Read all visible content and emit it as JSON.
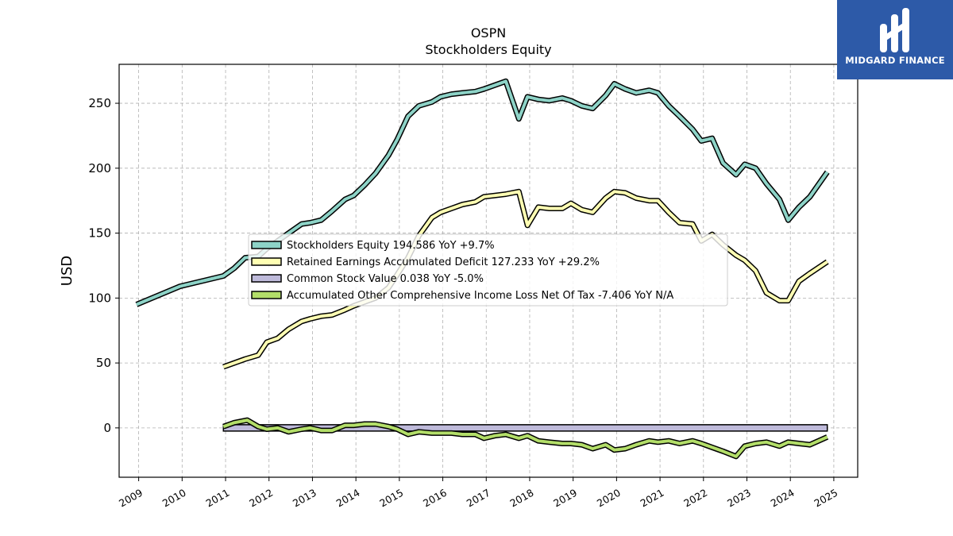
{
  "brand": {
    "name": "MIDGARD FINANCE",
    "bg_color": "#2d5aa8"
  },
  "chart_data": {
    "type": "line",
    "title": "OSPN",
    "subtitle": "Stockholders  Equity",
    "ylabel": "USD",
    "xlabel": "",
    "xlim": [
      2008.55,
      2025.55
    ],
    "ylim": [
      -38,
      280
    ],
    "yticks": [
      0,
      50,
      100,
      150,
      200,
      250
    ],
    "xticks": [
      "2009",
      "2010",
      "2011",
      "2012",
      "2013",
      "2014",
      "2015",
      "2016",
      "2017",
      "2018",
      "2019",
      "2020",
      "2021",
      "2022",
      "2023",
      "2024",
      "2025"
    ],
    "grid": true,
    "legend_position": "center",
    "series": [
      {
        "name": "Stockholders Equity  194.586 YoY +9.7%",
        "color": "#8dd3c7",
        "type": "line",
        "x": [
          2008.95,
          2009.95,
          2010.95,
          2011.2,
          2011.45,
          2011.75,
          2011.95,
          2012.2,
          2012.45,
          2012.75,
          2012.95,
          2013.2,
          2013.45,
          2013.75,
          2013.95,
          2014.2,
          2014.45,
          2014.75,
          2014.95,
          2015.2,
          2015.45,
          2015.75,
          2015.95,
          2016.2,
          2016.45,
          2016.75,
          2016.95,
          2017.2,
          2017.45,
          2017.75,
          2017.95,
          2018.2,
          2018.45,
          2018.75,
          2018.95,
          2019.2,
          2019.45,
          2019.75,
          2019.95,
          2020.2,
          2020.45,
          2020.75,
          2020.95,
          2021.2,
          2021.45,
          2021.75,
          2021.95,
          2022.2,
          2022.45,
          2022.75,
          2022.95,
          2023.2,
          2023.45,
          2023.75,
          2023.95,
          2024.2,
          2024.45,
          2024.85
        ],
        "y": [
          95,
          109,
          117,
          123,
          131,
          132,
          138,
          144,
          150,
          157,
          158,
          160,
          167,
          176,
          179,
          187,
          196,
          210,
          222,
          240,
          248,
          251,
          255,
          257,
          258,
          259,
          261,
          264,
          267,
          238,
          255,
          253,
          252,
          254,
          252,
          248,
          246,
          256,
          265,
          261,
          258,
          260,
          258,
          248,
          240,
          230,
          221,
          223,
          204,
          195,
          203,
          200,
          188,
          176,
          160,
          170,
          178,
          197
        ],
        "y_note": "approximate, read from gridlines"
      },
      {
        "name": "Retained Earnings Accumulated Deficit  127.233 YoY +29.2%",
        "color": "#ffffb3",
        "type": "line",
        "x": [
          2010.95,
          2011.2,
          2011.45,
          2011.75,
          2011.95,
          2012.2,
          2012.45,
          2012.75,
          2012.95,
          2013.2,
          2013.45,
          2013.75,
          2013.95,
          2014.2,
          2014.45,
          2014.75,
          2014.95,
          2015.2,
          2015.45,
          2015.75,
          2015.95,
          2016.2,
          2016.45,
          2016.75,
          2016.95,
          2017.2,
          2017.45,
          2017.75,
          2017.95,
          2018.2,
          2018.45,
          2018.75,
          2018.95,
          2019.2,
          2019.45,
          2019.75,
          2019.95,
          2020.2,
          2020.45,
          2020.75,
          2020.95,
          2021.2,
          2021.45,
          2021.75,
          2021.95,
          2022.2,
          2022.45,
          2022.75,
          2022.95,
          2023.2,
          2023.45,
          2023.75,
          2023.95,
          2024.2,
          2024.45,
          2024.85
        ],
        "y": [
          47,
          50,
          53,
          56,
          66,
          69,
          76,
          82,
          84,
          86,
          87,
          91,
          94,
          97,
          100,
          108,
          118,
          131,
          148,
          162,
          166,
          169,
          172,
          174,
          178,
          179,
          180,
          182,
          156,
          170,
          169,
          169,
          173,
          168,
          166,
          177,
          182,
          181,
          177,
          175,
          175,
          166,
          158,
          157,
          144,
          149,
          141,
          133,
          129,
          121,
          104,
          98,
          98,
          113,
          119,
          128
        ]
      },
      {
        "name": "Common Stock Value  0.038 YoY -5.0%",
        "color": "#bebada",
        "type": "bar-band",
        "x": [
          2010.95,
          2024.85
        ],
        "y": [
          0.038,
          0.038
        ]
      },
      {
        "name": "Accumulated Other Comprehensive Income Loss Net Of Tax  -7.406 YoY N/A",
        "color": "#b3de69",
        "type": "line",
        "x": [
          2010.95,
          2011.2,
          2011.5,
          2011.75,
          2011.95,
          2012.2,
          2012.45,
          2012.75,
          2012.95,
          2013.2,
          2013.45,
          2013.75,
          2013.95,
          2014.2,
          2014.45,
          2014.75,
          2014.95,
          2015.2,
          2015.45,
          2015.75,
          2015.95,
          2016.2,
          2016.45,
          2016.75,
          2016.95,
          2017.2,
          2017.45,
          2017.75,
          2017.95,
          2018.2,
          2018.45,
          2018.75,
          2018.95,
          2019.2,
          2019.45,
          2019.75,
          2019.95,
          2020.2,
          2020.45,
          2020.75,
          2020.95,
          2021.2,
          2021.45,
          2021.75,
          2021.95,
          2022.2,
          2022.45,
          2022.75,
          2022.95,
          2023.2,
          2023.45,
          2023.75,
          2023.95,
          2024.2,
          2024.45,
          2024.85
        ],
        "y": [
          1,
          4,
          6,
          1,
          -1,
          0,
          -3,
          -1,
          0,
          -2,
          -2,
          2,
          2,
          3,
          3,
          1,
          -1,
          -5,
          -3,
          -4,
          -4,
          -4,
          -5,
          -5,
          -8,
          -6,
          -5,
          -8,
          -6,
          -10,
          -11,
          -12,
          -12,
          -13,
          -16,
          -13,
          -17,
          -16,
          -13,
          -10,
          -11,
          -10,
          -12,
          -10,
          -12,
          -15,
          -18,
          -22,
          -14,
          -12,
          -11,
          -14,
          -11,
          -12,
          -13,
          -7
        ]
      }
    ]
  }
}
